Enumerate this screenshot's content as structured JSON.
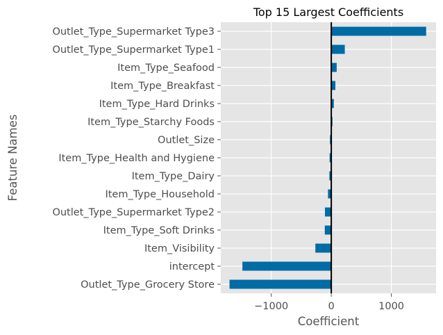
{
  "chart_data": {
    "type": "bar",
    "orientation": "horizontal",
    "title": "Top 15 Largest Coefficients",
    "xlabel": "Coefficient",
    "ylabel": "Feature Names",
    "categories": [
      "Outlet_Type_Supermarket Type3",
      "Outlet_Type_Supermarket Type1",
      "Item_Type_Seafood",
      "Item_Type_Breakfast",
      "Item_Type_Hard Drinks",
      "Item_Type_Starchy Foods",
      "Outlet_Size",
      "Item_Type_Health and Hygiene",
      "Item_Type_Dairy",
      "Item_Type_Household",
      "Outlet_Type_Supermarket Type2",
      "Item_Type_Soft Drinks",
      "Item_Visibility",
      "intercept",
      "Outlet_Type_Grocery Store"
    ],
    "values": [
      1580,
      225,
      90,
      68,
      42,
      20,
      -22,
      -28,
      -32,
      -55,
      -105,
      -108,
      -265,
      -1480,
      -1695
    ],
    "xlim": [
      -1840,
      1745
    ],
    "xticks": [
      -1000,
      0,
      1000
    ],
    "xtick_labels": [
      "−1000",
      "0",
      "1000"
    ],
    "grid": true,
    "zero_line": true,
    "colors": {
      "bar": "#006ba4",
      "plot_bg": "#e5e5e5",
      "grid": "#ffffff",
      "zero_line": "#000000"
    }
  }
}
